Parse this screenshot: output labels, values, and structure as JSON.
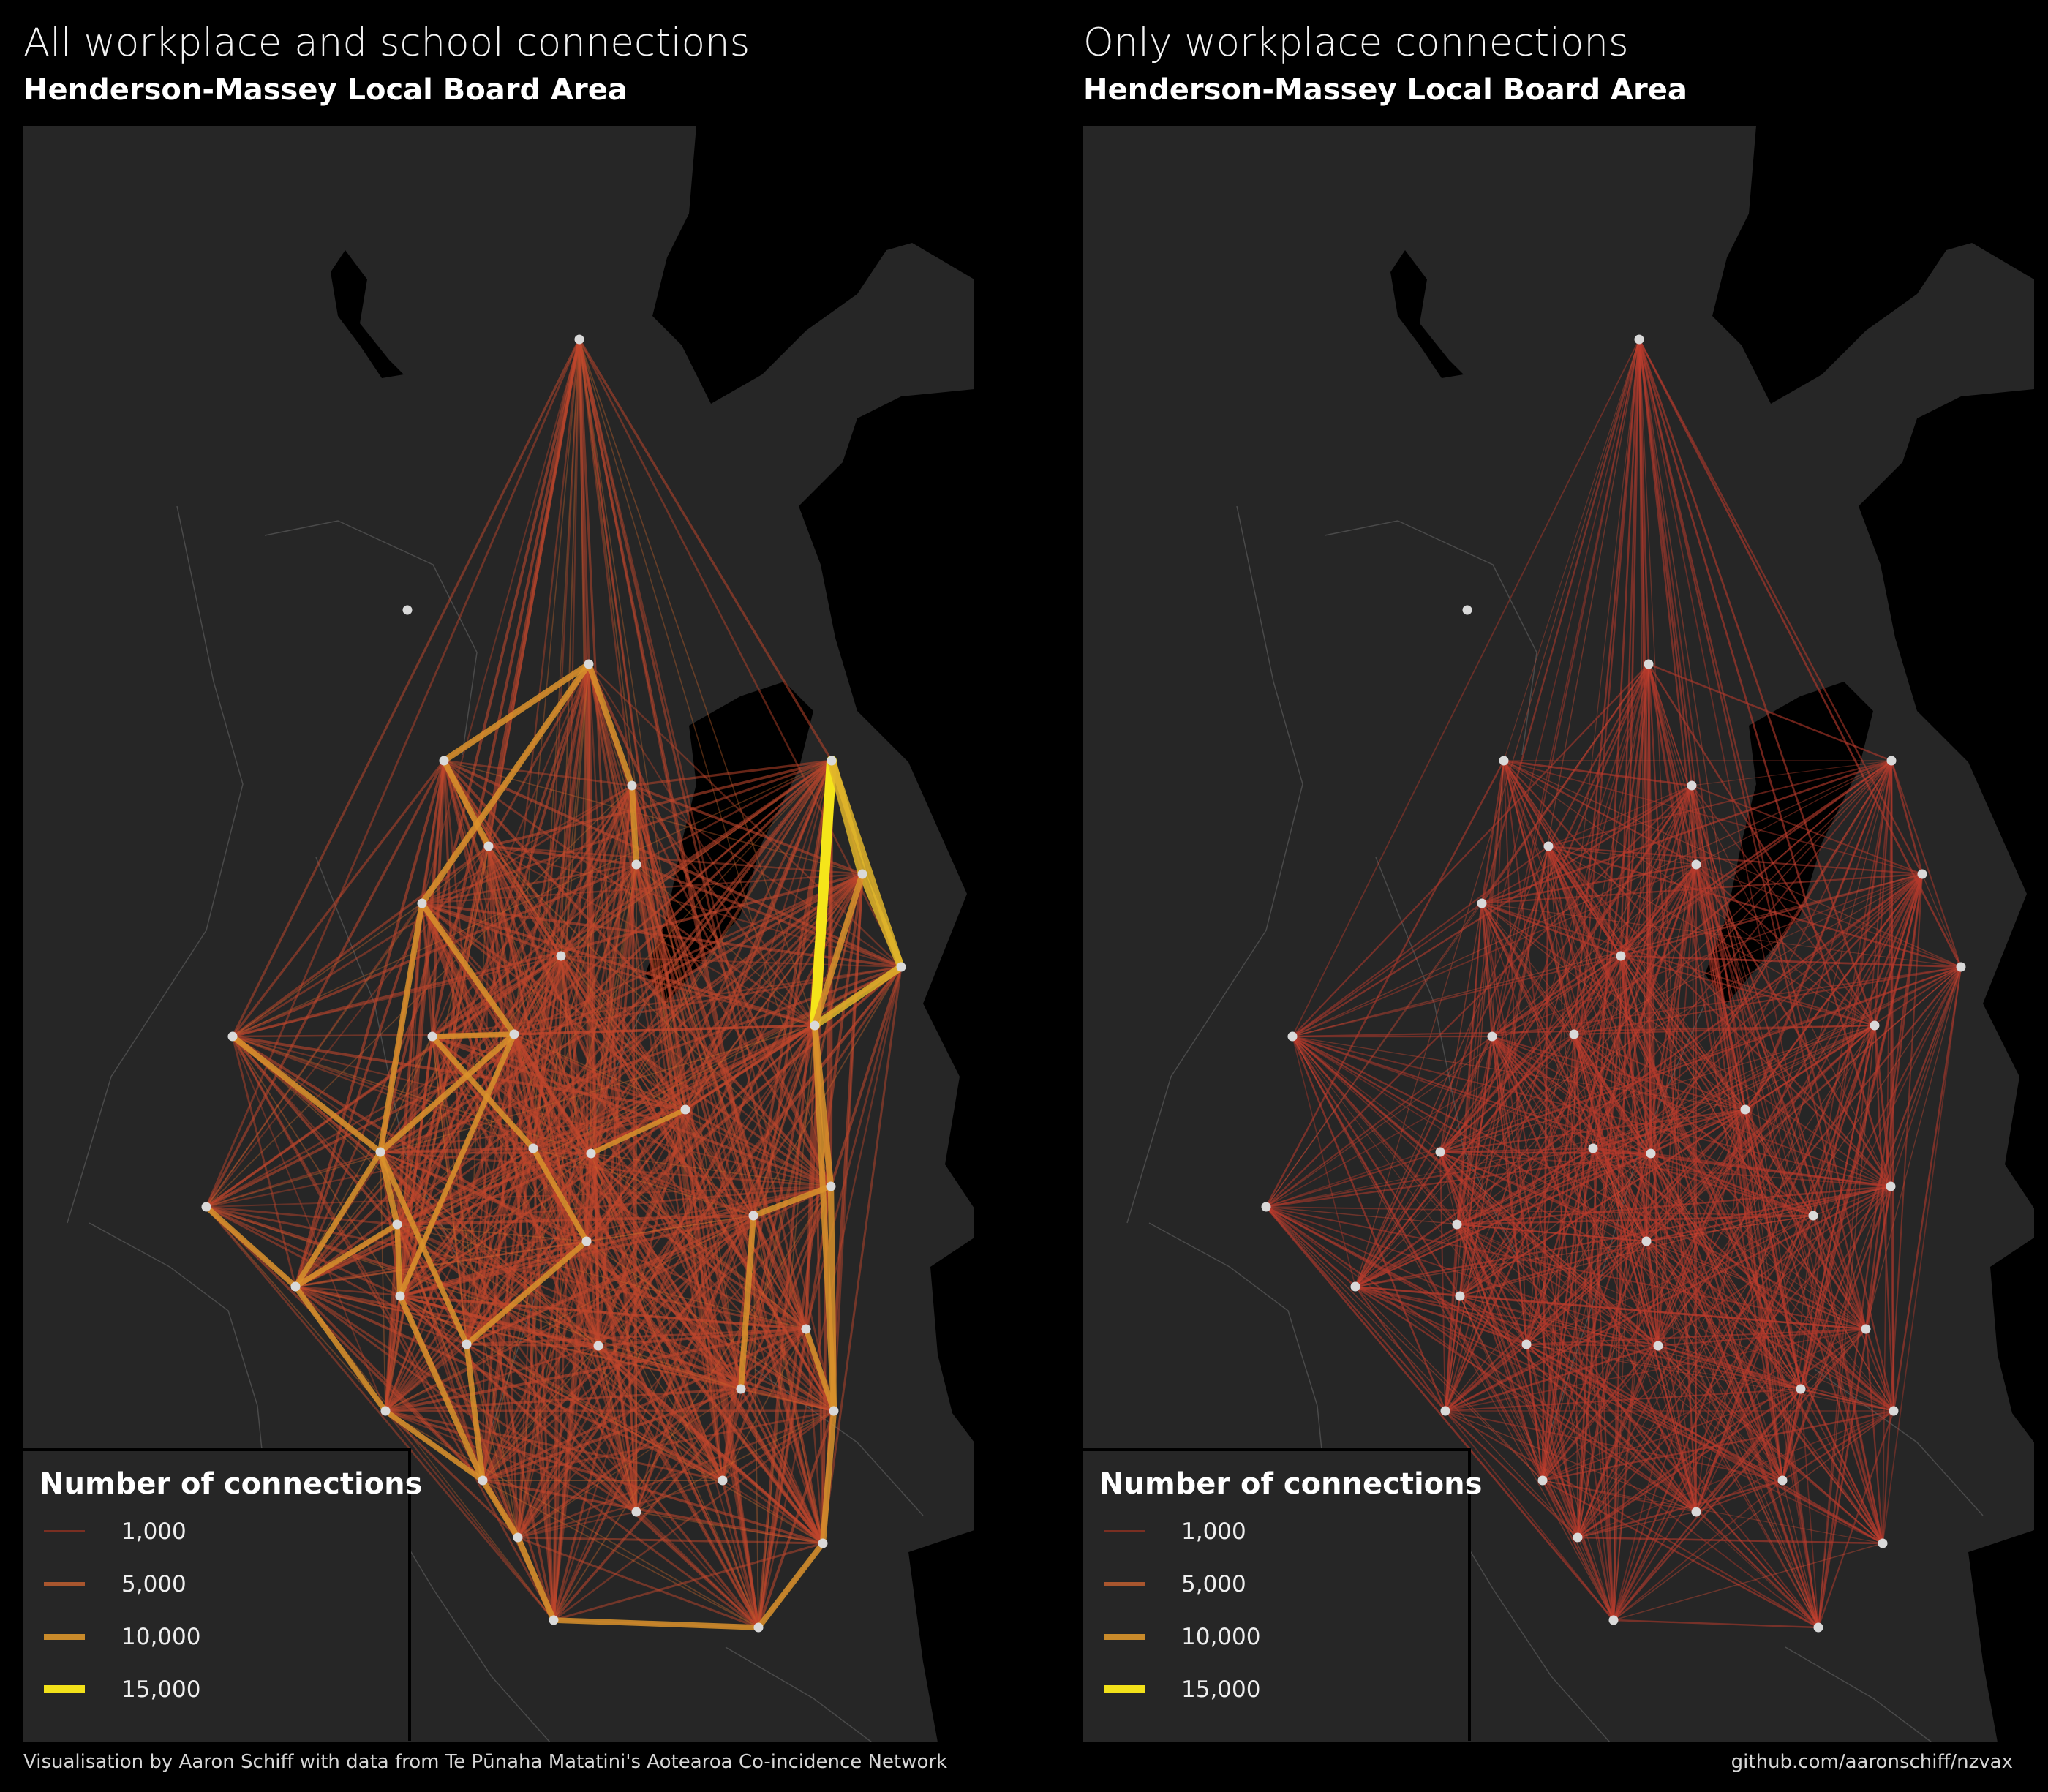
{
  "panels": [
    {
      "title": "All workplace and school connections",
      "subtitle": "Henderson-Massey Local Board Area",
      "mode": "all"
    },
    {
      "title": "Only workplace connections",
      "subtitle": "Henderson-Massey Local Board Area",
      "mode": "work"
    }
  ],
  "legend": {
    "title": "Number of connections",
    "items": [
      {
        "label": "1,000",
        "value": 1000,
        "color": "#7a2f22"
      },
      {
        "label": "5,000",
        "value": 5000,
        "color": "#a9562e"
      },
      {
        "label": "10,000",
        "value": 10000,
        "color": "#c98a2a"
      },
      {
        "label": "15,000",
        "value": 15000,
        "color": "#f2e11a"
      }
    ]
  },
  "footer": {
    "credit": "Visualisation by Aaron Schiff with data from Te Pūnaha Matatini's Aotearoa Co-incidence Network",
    "source": "github.com/aaronschiff/nzvax"
  },
  "colors": {
    "background": "#000000",
    "land": "#262626",
    "boundary": "#4a4a4a",
    "node": "#d9d9d9",
    "link_low": "#c0462c",
    "link_mid": "#d47a2c",
    "link_high": "#f5e51a"
  }
}
